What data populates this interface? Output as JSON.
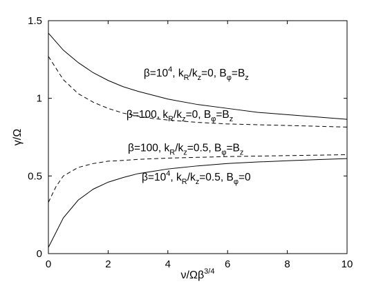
{
  "chart_data": {
    "type": "line",
    "title": "",
    "xlabel": "ν/Ωβ^3/4",
    "ylabel": "γ/Ω",
    "xlim": [
      0,
      10
    ],
    "ylim": [
      0,
      1.5
    ],
    "x_ticks": [
      0,
      2,
      4,
      6,
      8,
      10
    ],
    "x_tick_labels": [
      "0",
      "2",
      "4",
      "6",
      "8",
      "10"
    ],
    "y_ticks": [
      0,
      0.5,
      1,
      1.5
    ],
    "y_tick_labels": [
      "0",
      "0.5",
      "1",
      "1.5"
    ],
    "grid": false,
    "legend": "none",
    "series": [
      {
        "style": "solid",
        "label_parts": {
          "beta": "β=10",
          "beta_exp": "4",
          "k1": ", k",
          "k1_sub": "R",
          "k2": "/k",
          "k2_sub": "z",
          "k3": "=0, B",
          "b_sub": "φ",
          "b_rest": "=B",
          "b_rest_sub": "z"
        },
        "x": [
          0,
          0.5,
          1,
          1.5,
          2,
          2.5,
          3,
          3.5,
          4,
          5,
          6,
          7,
          8,
          9,
          10
        ],
        "y": [
          1.42,
          1.31,
          1.23,
          1.165,
          1.115,
          1.075,
          1.045,
          1.02,
          0.995,
          0.96,
          0.935,
          0.91,
          0.895,
          0.88,
          0.865
        ]
      },
      {
        "style": "dashed",
        "label_parts": {
          "beta": "β=100",
          "beta_exp": "",
          "k1": ", k",
          "k1_sub": "R",
          "k2": "/k",
          "k2_sub": "z",
          "k3": "=0, B",
          "b_sub": "φ",
          "b_rest": "=B",
          "b_rest_sub": "z"
        },
        "x": [
          0,
          0.5,
          1,
          1.5,
          2,
          2.5,
          3,
          3.5,
          4,
          5,
          6,
          7,
          8,
          9,
          10
        ],
        "y": [
          1.27,
          1.12,
          1.03,
          0.975,
          0.935,
          0.905,
          0.885,
          0.87,
          0.86,
          0.845,
          0.835,
          0.83,
          0.825,
          0.82,
          0.815
        ]
      },
      {
        "style": "dashed",
        "label_parts": {
          "beta": "β=100",
          "beta_exp": "",
          "k1": ", k",
          "k1_sub": "R",
          "k2": "/k",
          "k2_sub": "z",
          "k3": "=0.5, B",
          "b_sub": "φ",
          "b_rest": "=B",
          "b_rest_sub": "z"
        },
        "x": [
          0,
          0.25,
          0.5,
          1,
          1.5,
          2,
          2.5,
          3,
          4,
          5,
          6,
          7,
          8,
          9,
          10
        ],
        "y": [
          0.33,
          0.43,
          0.5,
          0.555,
          0.58,
          0.595,
          0.6,
          0.607,
          0.615,
          0.62,
          0.625,
          0.628,
          0.631,
          0.634,
          0.637
        ]
      },
      {
        "style": "solid",
        "label_parts": {
          "beta": "β=10",
          "beta_exp": "4",
          "k1": ", k",
          "k1_sub": "R",
          "k2": "/k",
          "k2_sub": "z",
          "k3": "=0.5, B",
          "b_sub": "φ",
          "b_rest": "=0",
          "b_rest_sub": ""
        },
        "x": [
          0,
          0.5,
          1,
          1.5,
          2,
          2.5,
          3,
          3.5,
          4,
          5,
          6,
          7,
          8,
          9,
          10
        ],
        "y": [
          0.04,
          0.23,
          0.345,
          0.415,
          0.46,
          0.49,
          0.515,
          0.53,
          0.545,
          0.565,
          0.58,
          0.59,
          0.598,
          0.605,
          0.612
        ]
      }
    ]
  }
}
